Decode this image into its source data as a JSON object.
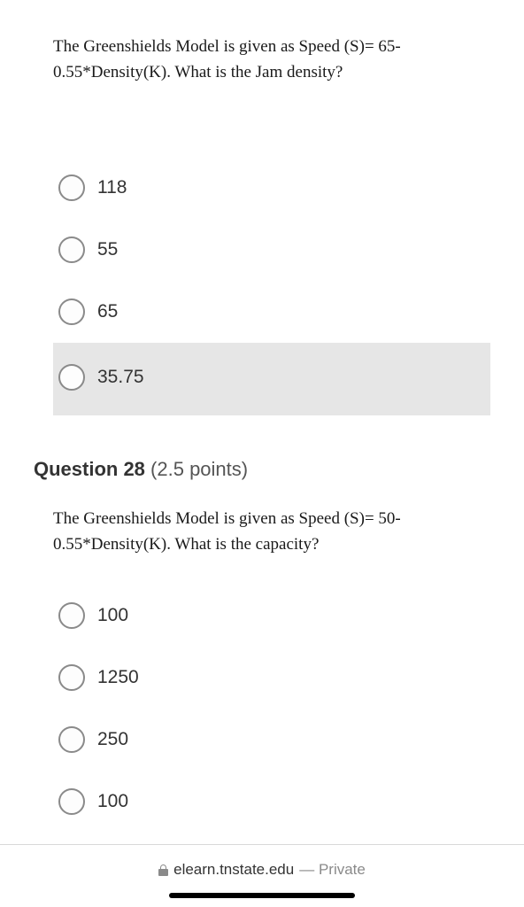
{
  "q27": {
    "prompt": "The Greenshields Model is given as Speed (S)= 65-0.55*Density(K). What is the Jam density?",
    "options": [
      "118",
      "55",
      "65",
      "35.75"
    ],
    "highlight_index": 3
  },
  "header28": {
    "label": "Question 28",
    "points": "(2.5 points)"
  },
  "q28": {
    "prompt": "The Greenshields Model is given as Speed (S)= 50-0.55*Density(K). What is the capacity?",
    "options": [
      "100",
      "1250",
      "250",
      "100"
    ]
  },
  "browser": {
    "domain": "elearn.tnstate.edu",
    "separator": " — ",
    "mode": "Private"
  },
  "colors": {
    "highlight_bg": "#e6e6e6",
    "radio_border": "#8a8a8a",
    "text": "#333333",
    "serif_text": "#1a1a1a",
    "muted": "#8a8a8a",
    "divider": "#d9d9d9"
  }
}
